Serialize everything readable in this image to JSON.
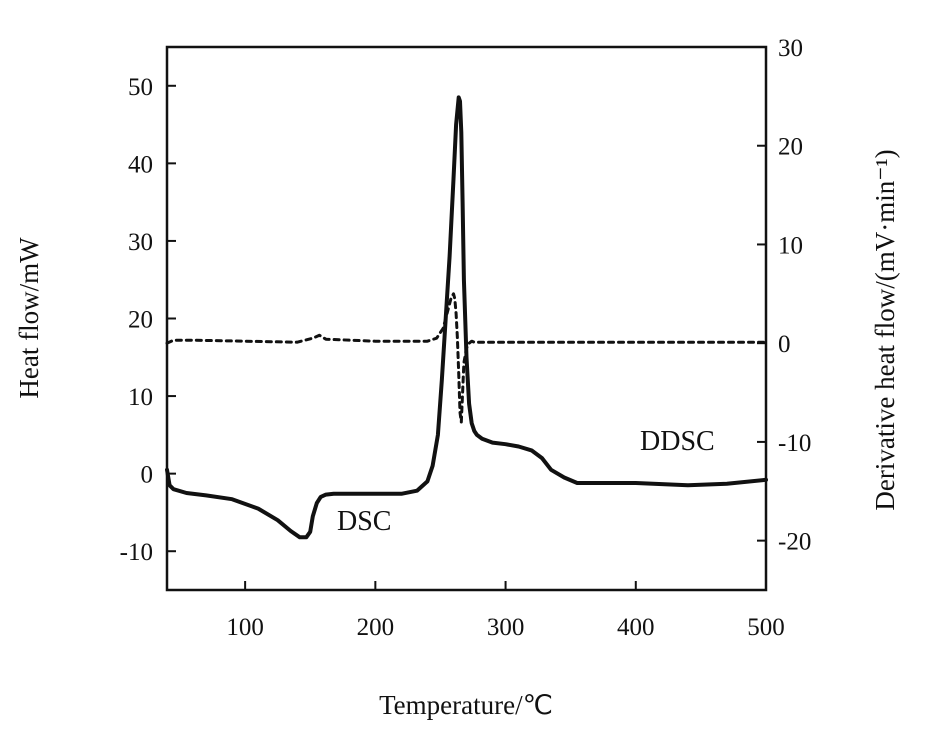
{
  "chart_data": {
    "type": "line",
    "xlabel": "Temperature/℃",
    "ylabel": "Heat flow/mW",
    "y2label": "Derivative heat flow/(mV·min⁻¹)",
    "xlim": [
      40,
      500
    ],
    "ylim": [
      -15,
      55
    ],
    "y2lim": [
      -25,
      30
    ],
    "x_ticks": [
      100,
      200,
      300,
      400,
      500
    ],
    "y_ticks": [
      -10,
      0,
      10,
      20,
      30,
      40,
      50
    ],
    "y2_ticks": [
      -20,
      -10,
      0,
      10,
      20,
      30
    ],
    "grid": false,
    "annotations": [
      {
        "text": "DSC",
        "x": 178,
        "y": -6
      },
      {
        "text": "DDSC",
        "x": 430,
        "y": 3.5
      }
    ],
    "series": [
      {
        "name": "DSC",
        "axis": "left",
        "style": "solid",
        "color": "#111111",
        "x": [
          40,
          42,
          45,
          55,
          70,
          90,
          110,
          125,
          135,
          142,
          147,
          150,
          152,
          155,
          158,
          162,
          168,
          180,
          200,
          220,
          232,
          240,
          244,
          248,
          251,
          254,
          257,
          260,
          262,
          264,
          265,
          266,
          267,
          268,
          270,
          272,
          274,
          276,
          278,
          282,
          290,
          300,
          310,
          320,
          328,
          335,
          345,
          355,
          370,
          400,
          440,
          470,
          500
        ],
        "y": [
          0.5,
          -1.5,
          -2.0,
          -2.5,
          -2.8,
          -3.3,
          -4.5,
          -6.0,
          -7.4,
          -8.2,
          -8.2,
          -7.5,
          -5.5,
          -3.8,
          -3.0,
          -2.7,
          -2.6,
          -2.6,
          -2.6,
          -2.6,
          -2.2,
          -1.0,
          1.0,
          5.0,
          12.0,
          20.0,
          28.0,
          38.0,
          45.0,
          48.5,
          48.0,
          44.0,
          35.0,
          25.0,
          15.0,
          9.0,
          6.5,
          5.5,
          5.0,
          4.5,
          4.0,
          3.8,
          3.5,
          3.0,
          2.0,
          0.5,
          -0.5,
          -1.2,
          -1.2,
          -1.2,
          -1.5,
          -1.3,
          -0.8
        ]
      },
      {
        "name": "DDSC",
        "axis": "right",
        "style": "dashed",
        "color": "#111111",
        "x": [
          40,
          45,
          60,
          100,
          140,
          152,
          157,
          162,
          200,
          240,
          247,
          252,
          255,
          258,
          260,
          261,
          262,
          263,
          264,
          265,
          266,
          267,
          268,
          270,
          272,
          274,
          276,
          280,
          300,
          400,
          500
        ],
        "y": [
          0.0,
          0.3,
          0.3,
          0.2,
          0.1,
          0.5,
          0.8,
          0.4,
          0.2,
          0.2,
          0.5,
          1.5,
          3.0,
          4.5,
          5.0,
          4.5,
          3.0,
          0.5,
          -3.0,
          -7.0,
          -8.0,
          -5.0,
          -2.0,
          -0.5,
          0.0,
          0.2,
          0.1,
          0.1,
          0.1,
          0.1,
          0.1
        ]
      }
    ]
  }
}
